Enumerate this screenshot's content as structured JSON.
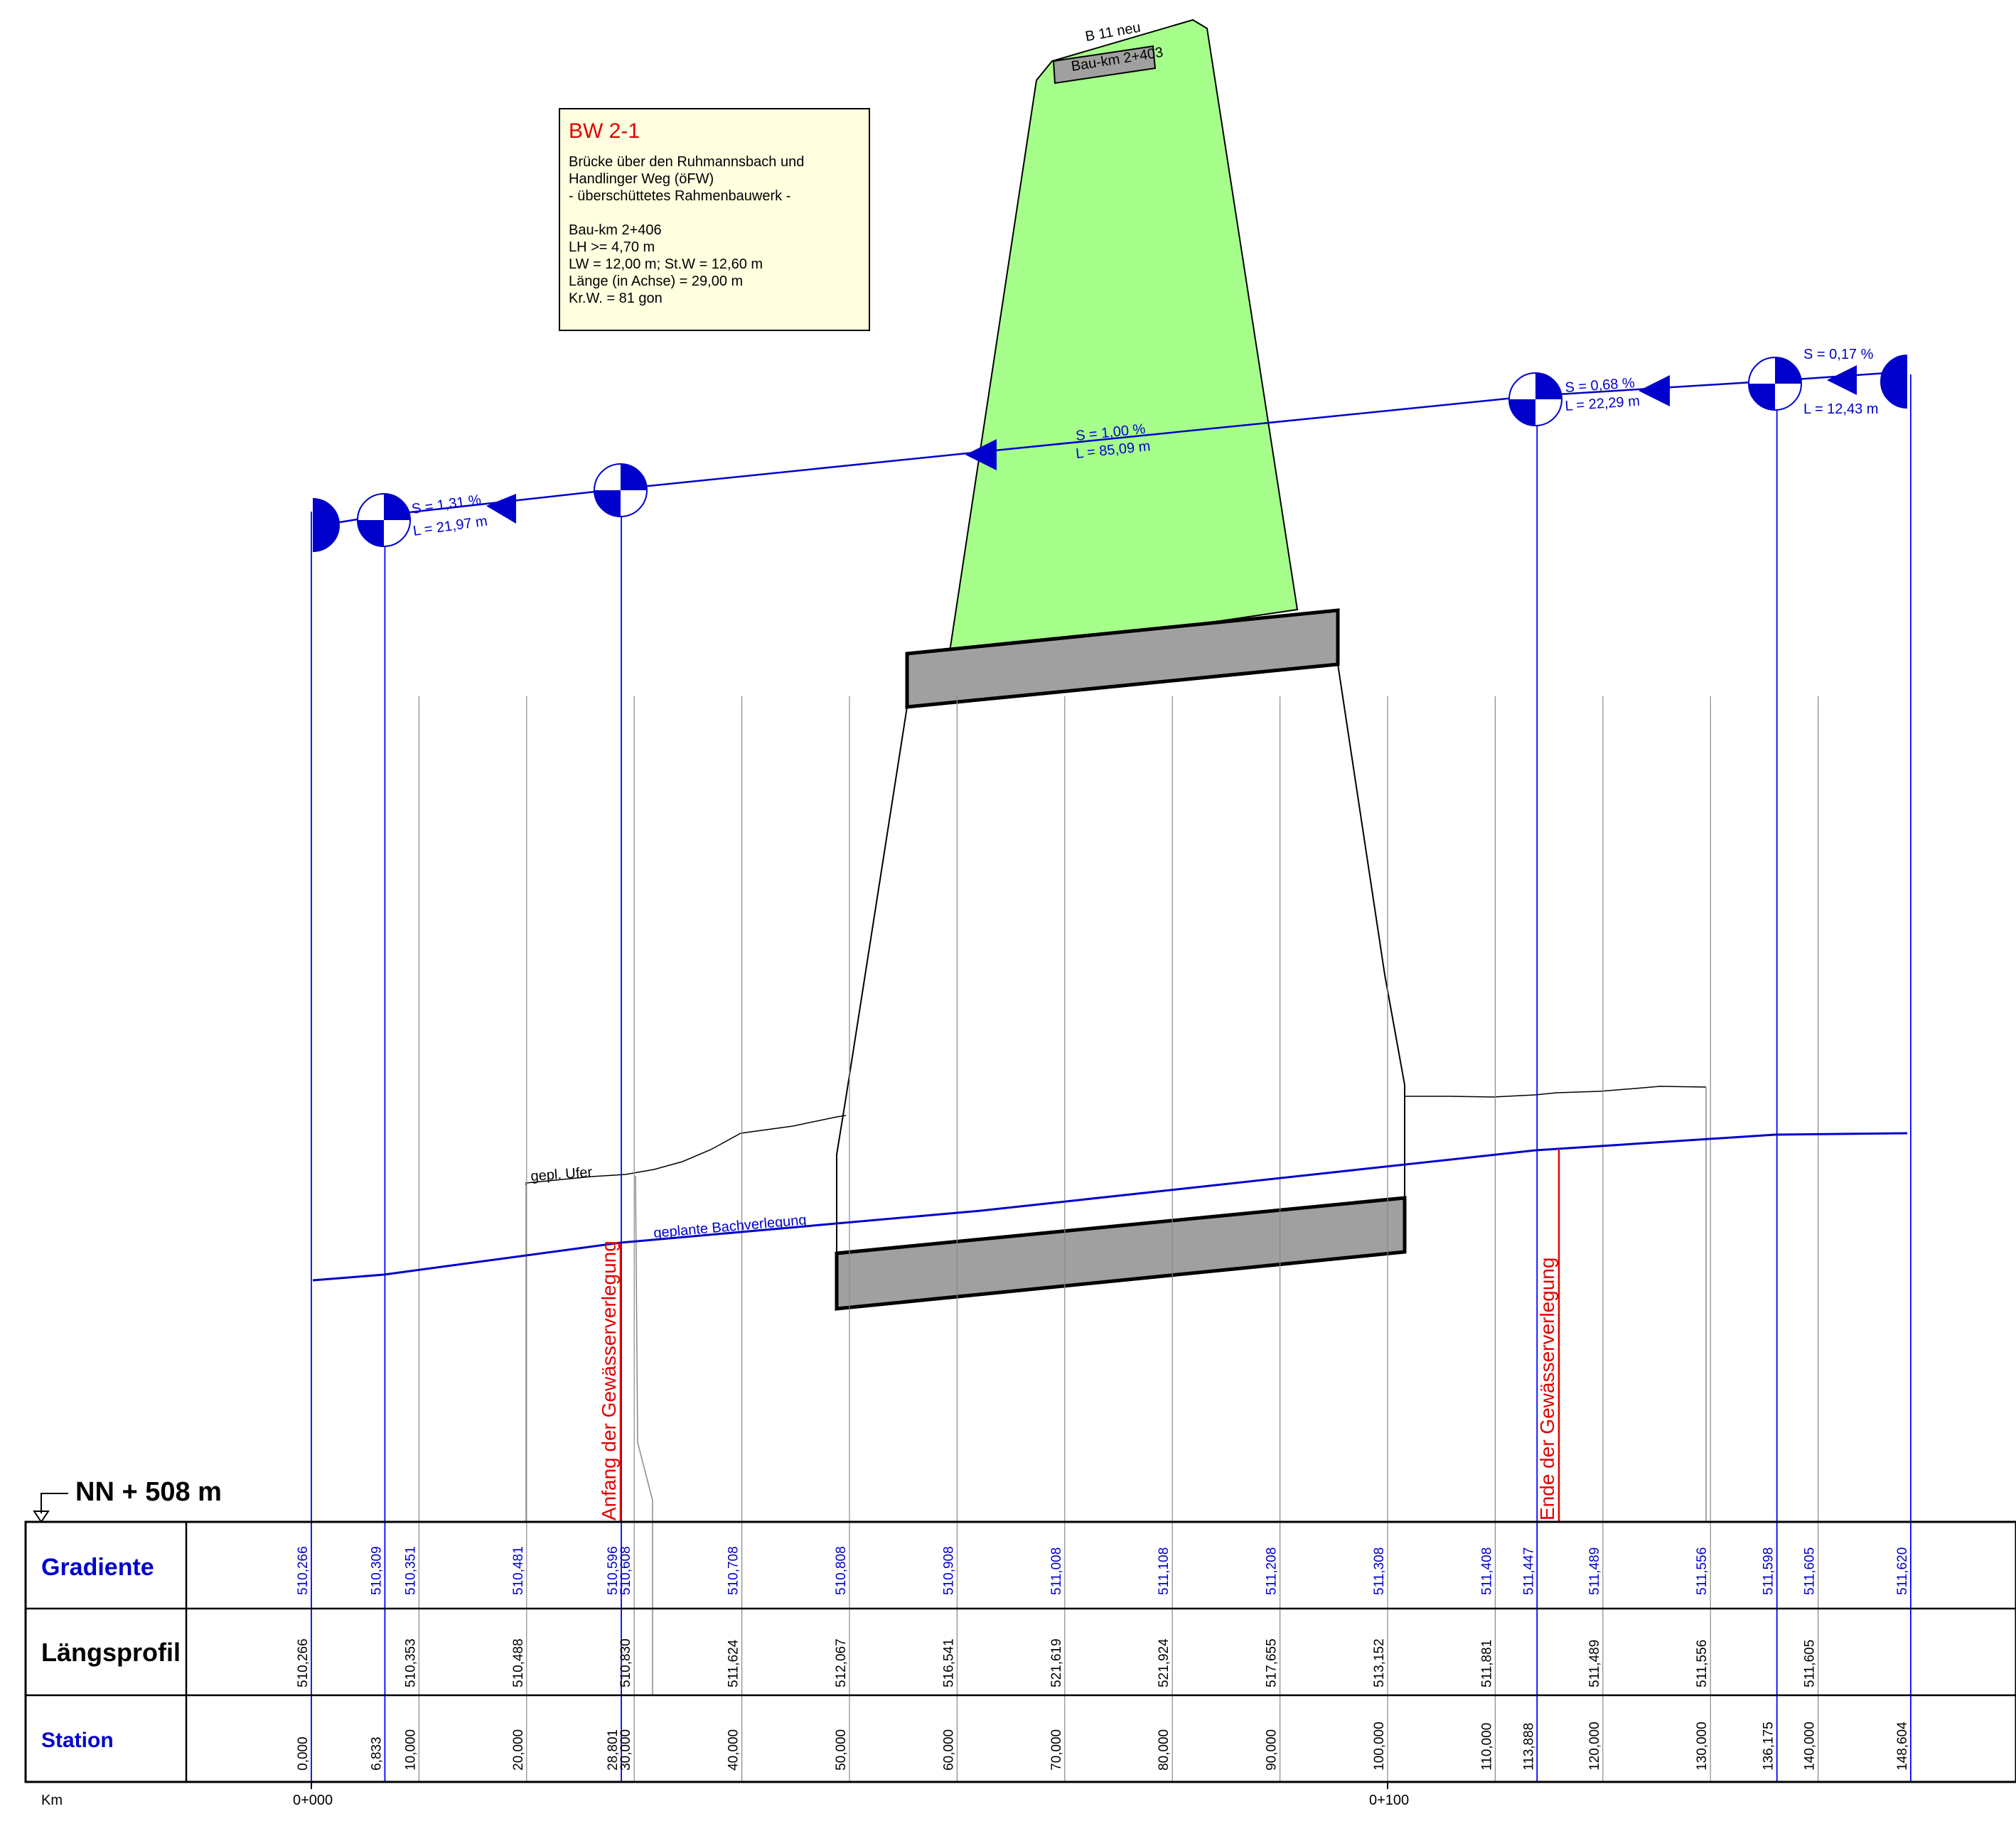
{
  "info_box": {
    "title": "BW 2-1",
    "lines": [
      "Brücke über den Ruhmannsbach und",
      "Handlinger Weg (öFW)",
      "- überschüttetes Rahmenbauwerk -",
      "",
      "Bau-km 2+406",
      "LH >= 4,70 m",
      "LW = 12,00 m; St.W = 12,60 m",
      "Länge (in Achse) = 29,00 m",
      "Kr.W. = 81 gon"
    ]
  },
  "road": {
    "name": "B 11 neu",
    "station_label": "Bau-km 2+403"
  },
  "datum": "NN + 508 m",
  "grade_segments": [
    {
      "slope": "S = 1,31 %",
      "length": "L = 21,97 m"
    },
    {
      "slope": "S = 1,00 %",
      "length": "L = 85,09 m"
    },
    {
      "slope": "S = 0,68 %",
      "length": "L = 22,29 m"
    },
    {
      "slope": "S = 0,17 %",
      "length": "L = 12,43 m"
    }
  ],
  "labels": {
    "bank": "gepl. Ufer",
    "creek": "geplante Bachverlegung",
    "start": "Anfang der Gewässerverlegung",
    "end": "Ende der Gewässerverlegung"
  },
  "table": {
    "rows": [
      "Gradiente",
      "Längsprofil",
      "Station"
    ],
    "km_label": "Km",
    "km_ticks": [
      {
        "station": 0,
        "label": "0+000"
      },
      {
        "station": 100,
        "label": "0+100"
      }
    ],
    "columns": [
      {
        "station": 0.0,
        "station_label": "0,000",
        "gradiente": "510,266",
        "laengsprofil": "510,266"
      },
      {
        "station": 6.833,
        "station_label": "6,833",
        "gradiente": "510,309",
        "laengsprofil": ""
      },
      {
        "station": 10.0,
        "station_label": "10,000",
        "gradiente": "510,351",
        "laengsprofil": "510,353"
      },
      {
        "station": 20.0,
        "station_label": "20,000",
        "gradiente": "510,481",
        "laengsprofil": "510,488"
      },
      {
        "station": 28.801,
        "station_label": "28,801",
        "gradiente": "510,596",
        "laengsprofil": ""
      },
      {
        "station": 30.0,
        "station_label": "30,000",
        "gradiente": "510,608",
        "laengsprofil": "510,830"
      },
      {
        "station": 40.0,
        "station_label": "40,000",
        "gradiente": "510,708",
        "laengsprofil": "511,624"
      },
      {
        "station": 50.0,
        "station_label": "50,000",
        "gradiente": "510,808",
        "laengsprofil": "512,067"
      },
      {
        "station": 60.0,
        "station_label": "60,000",
        "gradiente": "510,908",
        "laengsprofil": "516,541"
      },
      {
        "station": 70.0,
        "station_label": "70,000",
        "gradiente": "511,008",
        "laengsprofil": "521,619"
      },
      {
        "station": 80.0,
        "station_label": "80,000",
        "gradiente": "511,108",
        "laengsprofil": "521,924"
      },
      {
        "station": 90.0,
        "station_label": "90,000",
        "gradiente": "511,208",
        "laengsprofil": "517,655"
      },
      {
        "station": 100.0,
        "station_label": "100,000",
        "gradiente": "511,308",
        "laengsprofil": "513,152"
      },
      {
        "station": 110.0,
        "station_label": "110,000",
        "gradiente": "511,408",
        "laengsprofil": "511,881"
      },
      {
        "station": 113.888,
        "station_label": "113,888",
        "gradiente": "511,447",
        "laengsprofil": ""
      },
      {
        "station": 120.0,
        "station_label": "120,000",
        "gradiente": "511,489",
        "laengsprofil": "511,489"
      },
      {
        "station": 130.0,
        "station_label": "130,000",
        "gradiente": "511,556",
        "laengsprofil": "511,556"
      },
      {
        "station": 136.175,
        "station_label": "136,175",
        "gradiente": "511,598",
        "laengsprofil": ""
      },
      {
        "station": 140.0,
        "station_label": "140,000",
        "gradiente": "511,605",
        "laengsprofil": "511,605"
      },
      {
        "station": 148.604,
        "station_label": "148,604",
        "gradiente": "511,620",
        "laengsprofil": ""
      }
    ]
  },
  "colors": {
    "road_fill": "#a6ff8a",
    "structure_fill": "#a0a0a0",
    "gradient_blue": "#0000cc",
    "grid_blue": "#0000ff",
    "red": "#e00000",
    "box_fill": "#ffffe0"
  },
  "icons": [
    "arrow-left-icon",
    "vertical-curve-marker-icon",
    "datum-triangle-icon"
  ]
}
